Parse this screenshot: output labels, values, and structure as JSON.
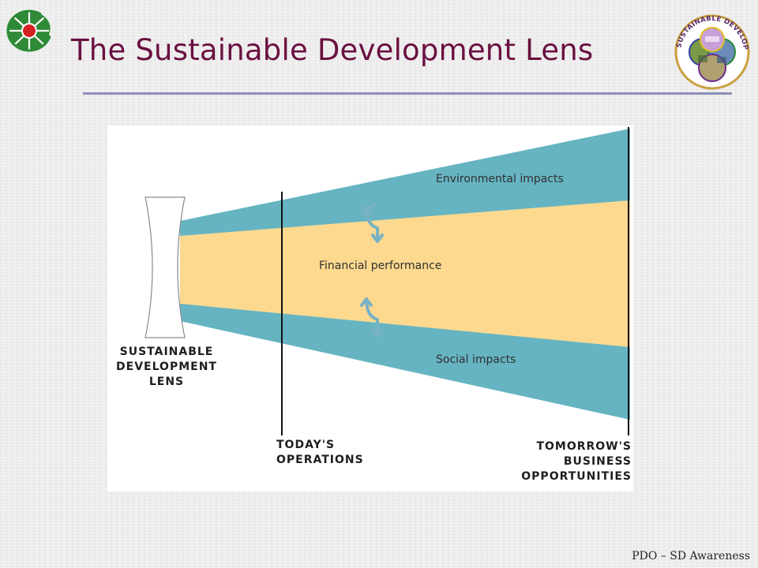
{
  "slide": {
    "title": "The Sustainable Development Lens",
    "footer": "PDO – SD Awareness"
  },
  "logos": {
    "left_icon": "company-logo-icon",
    "right_icon": "sustainable-development-badge-icon",
    "right_badge_text": "SUSTAINABLE DEVELOPMENT"
  },
  "diagram": {
    "bands": {
      "environmental": "Environmental impacts",
      "financial": "Financial performance",
      "social": "Social impacts"
    },
    "lens_label": [
      "SUSTAINABLE",
      "DEVELOPMENT",
      "LENS"
    ],
    "today_label": [
      "TODAY'S",
      "OPERATIONS"
    ],
    "tomorrow_label": [
      "TOMORROW'S",
      "BUSINESS",
      "OPPORTUNITIES"
    ],
    "colors": {
      "impact_band": "#66b4c2",
      "financial_band": "#fdd98f",
      "arrow": "#78b2c4",
      "title": "#6a1040",
      "rule": "#8f8fb8"
    }
  }
}
